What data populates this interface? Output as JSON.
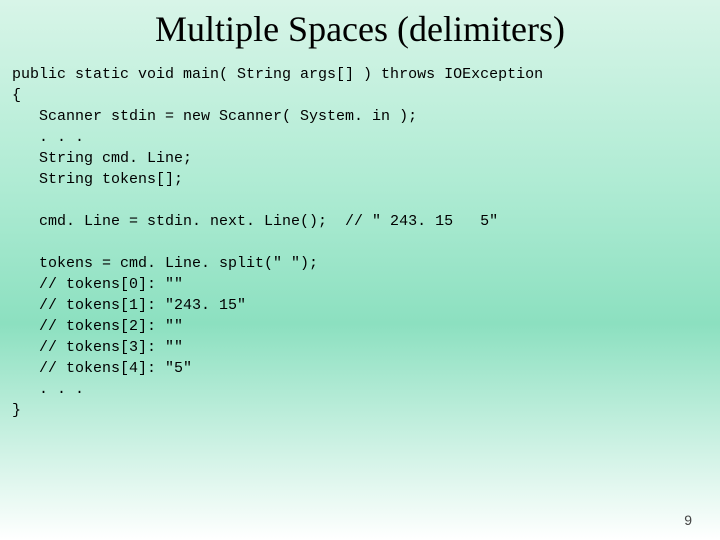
{
  "title": "Multiple Spaces (delimiters)",
  "code": {
    "line1": "public static void main( String args[] ) throws IOException",
    "line2": "{",
    "line3": "   Scanner stdin = new Scanner( System. in );",
    "line4": "   . . .",
    "line5": "   String cmd. Line;",
    "line6": "   String tokens[];",
    "line7": "",
    "line8": "   cmd. Line = stdin. next. Line();  // \" 243. 15   5\"",
    "line9": "",
    "line10": "   tokens = cmd. Line. split(\" \");",
    "line11": "   // tokens[0]: \"\"",
    "line12": "   // tokens[1]: \"243. 15\"",
    "line13": "   // tokens[2]: \"\"",
    "line14": "   // tokens[3]: \"\"",
    "line15": "   // tokens[4]: \"5\"",
    "line16": "   . . .",
    "line17": "}"
  },
  "pageNumber": "9",
  "style": {
    "titleColor": "#000000",
    "titleFontsize": 36,
    "codeFontsize": 15,
    "codeColor": "#000000",
    "gradientStart": "#d8f5e8",
    "gradientMid": "#aeebd3",
    "gradientEnd": "#ffffff"
  }
}
